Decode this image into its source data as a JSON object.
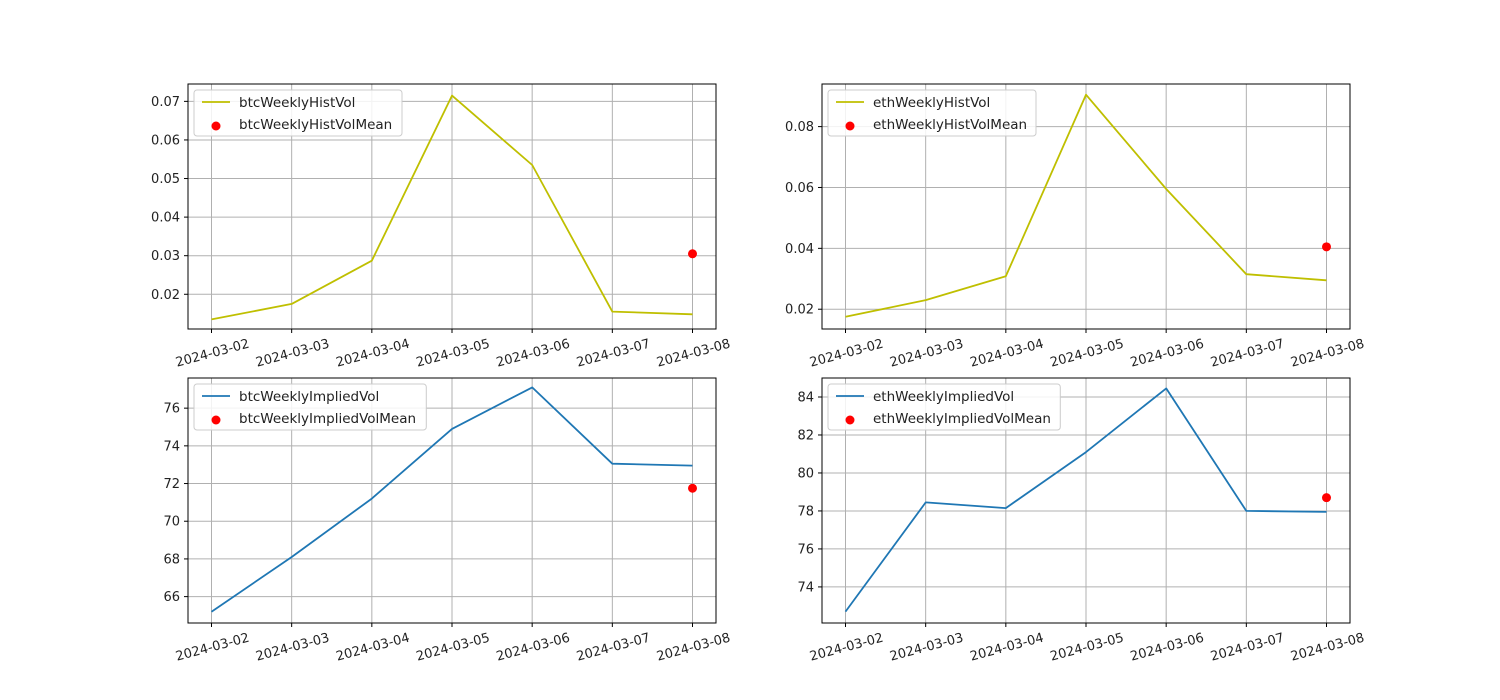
{
  "chart_data": [
    {
      "type": "line",
      "x": [
        "2024-03-02",
        "2024-03-03",
        "2024-03-04",
        "2024-03-05",
        "2024-03-06",
        "2024-03-07",
        "2024-03-08"
      ],
      "xticks": [
        "2024-03-02",
        "2024-03-03",
        "2024-03-04",
        "2024-03-05",
        "2024-03-06",
        "2024-03-07",
        "2024-03-08"
      ],
      "yticks": [
        "0.02",
        "0.03",
        "0.04",
        "0.05",
        "0.06",
        "0.07"
      ],
      "ylim": [
        0.011,
        0.0745
      ],
      "grid": true,
      "legend_position": "upper-left",
      "series": [
        {
          "name": "btcWeeklyHistVol",
          "kind": "line",
          "color": "#bfbf00",
          "values": [
            0.0135,
            0.0175,
            0.0287,
            0.0715,
            0.0535,
            0.0155,
            0.0148
          ]
        },
        {
          "name": "btcWeeklyHistVolMean",
          "kind": "scatter",
          "color": "#ff0000",
          "points": [
            {
              "x": "2024-03-08",
              "y": 0.0305
            }
          ]
        }
      ]
    },
    {
      "type": "line",
      "x": [
        "2024-03-02",
        "2024-03-03",
        "2024-03-04",
        "2024-03-05",
        "2024-03-06",
        "2024-03-07",
        "2024-03-08"
      ],
      "xticks": [
        "2024-03-02",
        "2024-03-03",
        "2024-03-04",
        "2024-03-05",
        "2024-03-06",
        "2024-03-07",
        "2024-03-08"
      ],
      "yticks": [
        "0.02",
        "0.04",
        "0.06",
        "0.08"
      ],
      "ylim": [
        0.0135,
        0.094
      ],
      "grid": true,
      "legend_position": "upper-left",
      "series": [
        {
          "name": "ethWeeklyHistVol",
          "kind": "line",
          "color": "#bfbf00",
          "values": [
            0.0175,
            0.023,
            0.0308,
            0.0905,
            0.0595,
            0.0315,
            0.0295
          ]
        },
        {
          "name": "ethWeeklyHistVolMean",
          "kind": "scatter",
          "color": "#ff0000",
          "points": [
            {
              "x": "2024-03-08",
              "y": 0.0405
            }
          ]
        }
      ]
    },
    {
      "type": "line",
      "x": [
        "2024-03-02",
        "2024-03-03",
        "2024-03-04",
        "2024-03-05",
        "2024-03-06",
        "2024-03-07",
        "2024-03-08"
      ],
      "xticks": [
        "2024-03-02",
        "2024-03-03",
        "2024-03-04",
        "2024-03-05",
        "2024-03-06",
        "2024-03-07",
        "2024-03-08"
      ],
      "yticks": [
        "66",
        "68",
        "70",
        "72",
        "74",
        "76"
      ],
      "ylim": [
        64.6,
        77.6
      ],
      "grid": true,
      "legend_position": "upper-left",
      "series": [
        {
          "name": "btcWeeklyImpliedVol",
          "kind": "line",
          "color": "#1f77b4",
          "values": [
            65.2,
            68.1,
            71.2,
            74.9,
            77.1,
            73.05,
            72.95
          ]
        },
        {
          "name": "btcWeeklyImpliedVolMean",
          "kind": "scatter",
          "color": "#ff0000",
          "points": [
            {
              "x": "2024-03-08",
              "y": 71.75
            }
          ]
        }
      ]
    },
    {
      "type": "line",
      "x": [
        "2024-03-02",
        "2024-03-03",
        "2024-03-04",
        "2024-03-05",
        "2024-03-06",
        "2024-03-07",
        "2024-03-08"
      ],
      "xticks": [
        "2024-03-02",
        "2024-03-03",
        "2024-03-04",
        "2024-03-05",
        "2024-03-06",
        "2024-03-07",
        "2024-03-08"
      ],
      "yticks": [
        "74",
        "76",
        "78",
        "80",
        "82",
        "84"
      ],
      "ylim": [
        72.1,
        85.0
      ],
      "grid": true,
      "legend_position": "upper-left",
      "series": [
        {
          "name": "ethWeeklyImpliedVol",
          "kind": "line",
          "color": "#1f77b4",
          "values": [
            72.7,
            78.45,
            78.15,
            81.1,
            84.45,
            78.0,
            77.95
          ]
        },
        {
          "name": "ethWeeklyImpliedVolMean",
          "kind": "scatter",
          "color": "#ff0000",
          "points": [
            {
              "x": "2024-03-08",
              "y": 78.7
            }
          ]
        }
      ]
    }
  ]
}
